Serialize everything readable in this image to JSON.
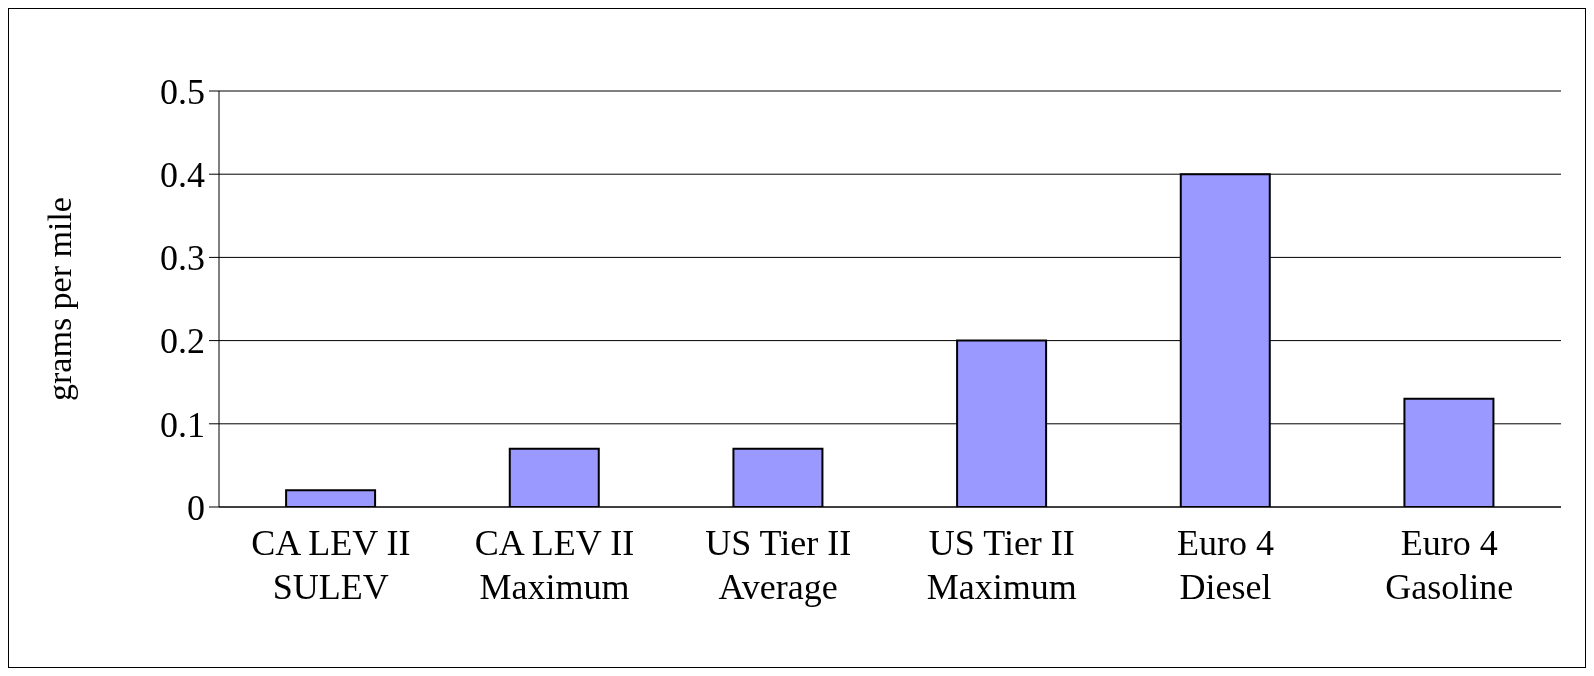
{
  "chart_data": {
    "type": "bar",
    "ylabel": "grams per mile",
    "categories": [
      "CA LEV II\nSULEV",
      "CA LEV II\nMaximum",
      "US Tier II\nAverage",
      "US Tier II\nMaximum",
      "Euro 4\nDiesel",
      "Euro 4\nGasoline"
    ],
    "values": [
      0.02,
      0.07,
      0.07,
      0.2,
      0.4,
      0.13
    ],
    "color": "#9999ff",
    "ylim": [
      0,
      0.5
    ],
    "yticks": [
      0,
      0.1,
      0.2,
      0.3,
      0.4,
      0.5
    ],
    "grid": "y"
  }
}
